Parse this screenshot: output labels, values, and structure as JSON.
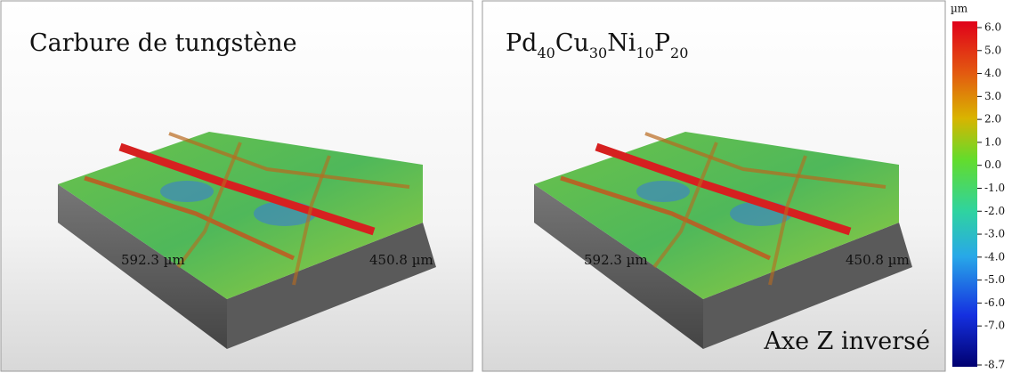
{
  "panels": [
    {
      "title": [
        {
          "text": "Carbure de tungstène"
        }
      ],
      "x_label": "592.3 µm",
      "y_label": "450.8 µm"
    },
    {
      "title": [
        {
          "text": "Pd",
          "sub": "40"
        },
        {
          "text": "Cu",
          "sub": "30"
        },
        {
          "text": "Ni",
          "sub": "10"
        },
        {
          "text": "P",
          "sub": "20"
        }
      ],
      "x_label": "592.3 µm",
      "y_label": "450.8 µm",
      "note": "Axe Z inversé"
    }
  ],
  "colorbar": {
    "unit": "µm",
    "ticks": [
      {
        "value": 6,
        "label": "6.0"
      },
      {
        "value": 5,
        "label": "5.0"
      },
      {
        "value": 4,
        "label": "4.0"
      },
      {
        "value": 3,
        "label": "3.0"
      },
      {
        "value": 2,
        "label": "2.0"
      },
      {
        "value": 1,
        "label": "1.0"
      },
      {
        "value": 0,
        "label": "0.0"
      },
      {
        "value": -1,
        "label": "-1.0"
      },
      {
        "value": -2,
        "label": "-2.0"
      },
      {
        "value": -3,
        "label": "-3.0"
      },
      {
        "value": -4,
        "label": "-4.0"
      },
      {
        "value": -5,
        "label": "-5.0"
      },
      {
        "value": -6,
        "label": "-6.0"
      },
      {
        "value": -7,
        "label": "-7.0"
      },
      {
        "value": -8.7,
        "label": "-8.7"
      }
    ]
  }
}
